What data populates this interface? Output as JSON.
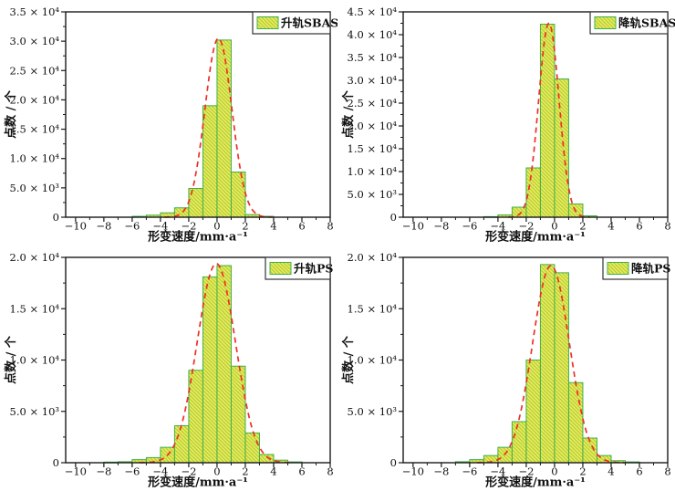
{
  "figure": {
    "background": "#ffffff",
    "style": {
      "bar_fill": "#f0ec55",
      "bar_hatch": "#aecf45",
      "bar_border": "#3fb04c",
      "fit_color": "#ee2f26",
      "axis_color": "#1a1a1a",
      "legend_border": "#333333"
    }
  },
  "chart_data": [
    {
      "type": "bar",
      "subtype": "histogram-with-gaussian-fit",
      "legend": "升轨SBAS",
      "xlabel": "形变速度/mm·a⁻¹",
      "ylabel": "点数 / 个",
      "xlim": [
        -10.7,
        8
      ],
      "ylim": [
        0,
        35000
      ],
      "x_ticks": [
        -10,
        -8,
        -6,
        -4,
        -2,
        0,
        2,
        4,
        6,
        8
      ],
      "y_ticks": [
        {
          "v": 0,
          "label": "0"
        },
        {
          "v": 5000,
          "label": "5.0 × 10³"
        },
        {
          "v": 10000,
          "label": "1.0 × 10⁴"
        },
        {
          "v": 15000,
          "label": "1.5 × 10⁴"
        },
        {
          "v": 20000,
          "label": "2.0 × 10⁴"
        },
        {
          "v": 25000,
          "label": "2.5 × 10⁴"
        },
        {
          "v": 30000,
          "label": "3.0 × 10⁴"
        },
        {
          "v": 35000,
          "label": "3.5 × 10⁴"
        }
      ],
      "bin_start": -6,
      "bin_width": 1,
      "counts": [
        150,
        350,
        750,
        1600,
        4900,
        19000,
        30200,
        7700,
        450,
        150
      ],
      "gaussian_fit": {
        "mu": 0.1,
        "sigma": 0.95,
        "amplitude": 30500
      }
    },
    {
      "type": "bar",
      "subtype": "histogram-with-gaussian-fit",
      "legend": "降轨SBAS",
      "xlabel": "形变速度/mm·a⁻¹",
      "ylabel": "点数 / 个",
      "xlim": [
        -10.7,
        8
      ],
      "ylim": [
        0,
        45000
      ],
      "x_ticks": [
        -10,
        -8,
        -6,
        -4,
        -2,
        0,
        2,
        4,
        6,
        8
      ],
      "y_ticks": [
        {
          "v": 0,
          "label": "0"
        },
        {
          "v": 5000,
          "label": "5.0 × 10³"
        },
        {
          "v": 10000,
          "label": "1.0 × 10⁴"
        },
        {
          "v": 15000,
          "label": "1.5 × 10⁴"
        },
        {
          "v": 20000,
          "label": "2.0 × 10⁴"
        },
        {
          "v": 25000,
          "label": "2.5 × 10⁴"
        },
        {
          "v": 30000,
          "label": "3.0 × 10⁴"
        },
        {
          "v": 35000,
          "label": "3.5 × 10⁴"
        },
        {
          "v": 40000,
          "label": "4.0 × 10⁴"
        },
        {
          "v": 45000,
          "label": "4.5 × 10⁴"
        }
      ],
      "bin_start": -5,
      "bin_width": 1,
      "counts": [
        120,
        500,
        2200,
        10800,
        42300,
        30300,
        2900,
        300
      ],
      "gaussian_fit": {
        "mu": -0.4,
        "sigma": 0.72,
        "amplitude": 42500
      }
    },
    {
      "type": "bar",
      "subtype": "histogram-with-gaussian-fit",
      "legend": "升轨PS",
      "xlabel": "形变速度/mm·a⁻¹",
      "ylabel": "点数 / 个",
      "xlim": [
        -10.7,
        8
      ],
      "ylim": [
        0,
        20000
      ],
      "x_ticks": [
        -10,
        -8,
        -6,
        -4,
        -2,
        0,
        2,
        4,
        6,
        8
      ],
      "y_ticks": [
        {
          "v": 0,
          "label": "0"
        },
        {
          "v": 5000,
          "label": "5.0 × 10³"
        },
        {
          "v": 10000,
          "label": "1.0 × 10⁴"
        },
        {
          "v": 15000,
          "label": "1.5 × 10⁴"
        },
        {
          "v": 20000,
          "label": "2.0 × 10⁴"
        }
      ],
      "bin_start": -8,
      "bin_width": 1,
      "counts": [
        60,
        100,
        300,
        500,
        1500,
        3600,
        9000,
        18100,
        19200,
        9400,
        2900,
        800,
        250,
        80
      ],
      "gaussian_fit": {
        "mu": -0.05,
        "sigma": 1.35,
        "amplitude": 19400
      }
    },
    {
      "type": "bar",
      "subtype": "histogram-with-gaussian-fit",
      "legend": "降轨PS",
      "xlabel": "形变速度/mm·a⁻¹",
      "ylabel": "点数 / 个",
      "xlim": [
        -10.7,
        8
      ],
      "ylim": [
        0,
        20000
      ],
      "x_ticks": [
        -10,
        -8,
        -6,
        -4,
        -2,
        0,
        2,
        4,
        6,
        8
      ],
      "y_ticks": [
        {
          "v": 0,
          "label": "0"
        },
        {
          "v": 5000,
          "label": "5.0 × 10³"
        },
        {
          "v": 10000,
          "label": "1.0 × 10⁴"
        },
        {
          "v": 15000,
          "label": "1.5 × 10⁴"
        },
        {
          "v": 20000,
          "label": "2.0 × 10⁴"
        }
      ],
      "bin_start": -7,
      "bin_width": 1,
      "counts": [
        100,
        300,
        700,
        1500,
        4000,
        10000,
        19300,
        18500,
        7800,
        2400,
        700,
        200,
        80
      ],
      "gaussian_fit": {
        "mu": -0.25,
        "sigma": 1.3,
        "amplitude": 19200
      }
    }
  ]
}
